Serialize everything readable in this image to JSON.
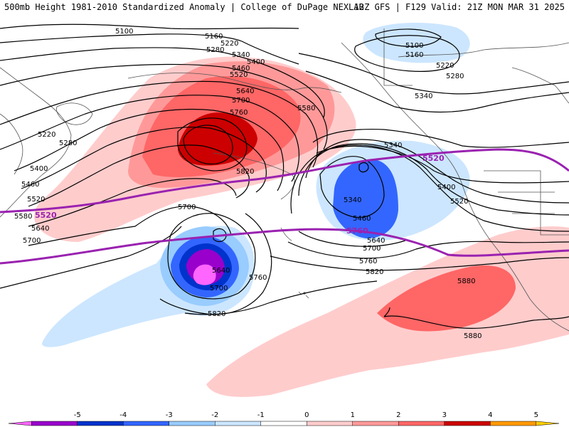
{
  "header": {
    "title_left": "500mb Height 1981-2010 Standardized Anomaly | College of DuPage NEXLAB",
    "title_right": "12Z GFS | F129 Valid: 21Z MON MAR 31 2025"
  },
  "contours": {
    "c5100a": "5100",
    "c5100b": "5100",
    "c5160a": "5160",
    "c5160b": "5160",
    "c5220a": "5220",
    "c5220b": "5220",
    "c5220c": "5220",
    "c5280a": "5280",
    "c5280b": "5280",
    "c5280c": "5280",
    "c5340a": "5340",
    "c5340b": "5340",
    "c5340c": "5340",
    "c5340d": "5340",
    "c5400a": "5400",
    "c5400b": "5400",
    "c5400c": "5400",
    "c5460a": "5460",
    "c5460b": "5460",
    "c5460c": "5460",
    "c5520a": "5520",
    "c5520b": "5520",
    "c5520c": "5520",
    "c5580a": "5580",
    "c5580b": "5580",
    "c5640a": "5640",
    "c5640b": "5640",
    "c5640c": "5640",
    "c5640d": "5640",
    "c5700a": "5700",
    "c5700b": "5700",
    "c5700c": "5700",
    "c5700d": "5700",
    "c5700e": "5700",
    "c5760a": "5760",
    "c5760b": "5760",
    "c5760c": "5760",
    "c5820a": "5820",
    "c5820b": "5820",
    "c5820c": "5820",
    "c5880a": "5880",
    "c5880b": "5880"
  },
  "highlight_contours": {
    "p5520a": "5520",
    "p5520b": "5520",
    "p5760": "5760"
  },
  "legend": {
    "labels": [
      "-5",
      "-4",
      "-3",
      "-2",
      "-1",
      "0",
      "1",
      "2",
      "3",
      "4",
      "5"
    ],
    "colors": [
      "#ff66ff",
      "#9900cc",
      "#0033cc",
      "#3366ff",
      "#99ccff",
      "#cce6ff",
      "#ffffff",
      "#ffcccc",
      "#ff9999",
      "#ff6666",
      "#cc0000",
      "#ff9900",
      "#ffcc00"
    ]
  },
  "colors": {
    "highlight_contour": "#9a22b0",
    "height_contour": "#000000",
    "coastline": "#555555"
  }
}
